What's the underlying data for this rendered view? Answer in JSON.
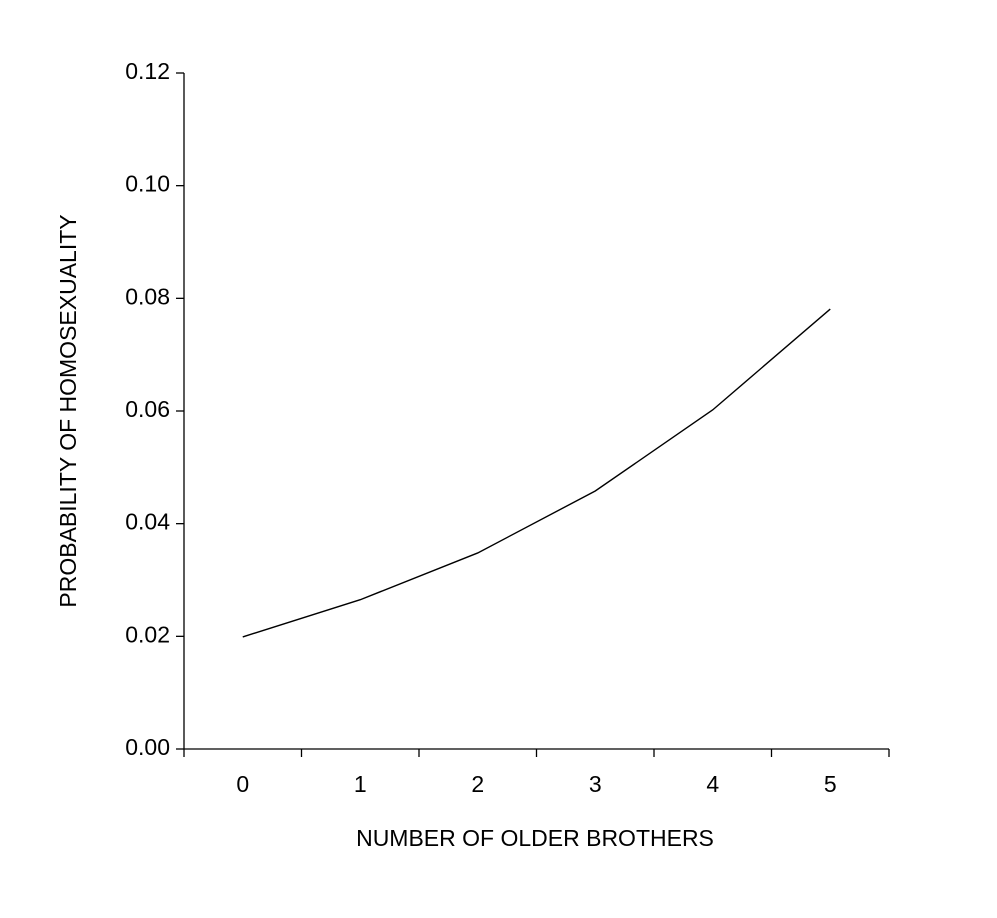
{
  "chart_data": {
    "type": "line",
    "x_label": "NUMBER OF OLDER BROTHERS",
    "y_label": "PROBABILITY OF HOMOSEXUALITY",
    "categories": [
      "0",
      "1",
      "2",
      "3",
      "4",
      "5"
    ],
    "series": [
      {
        "name": null,
        "color": "#000000",
        "values": [
          0.0199,
          0.0265,
          0.0348,
          0.0458,
          0.0602,
          0.0781
        ]
      }
    ],
    "ylim": [
      0,
      0.12
    ],
    "yticks": [
      {
        "value": 0,
        "label": "0.00"
      },
      {
        "value": 0.02,
        "label": "0.02"
      },
      {
        "value": 0.04,
        "label": "0.04"
      },
      {
        "value": 0.06,
        "label": "0.06"
      },
      {
        "value": 0.08,
        "label": "0.08"
      },
      {
        "value": 0.1,
        "label": "0.10"
      },
      {
        "value": 0.12,
        "label": "0.12"
      }
    ],
    "grid": false
  }
}
